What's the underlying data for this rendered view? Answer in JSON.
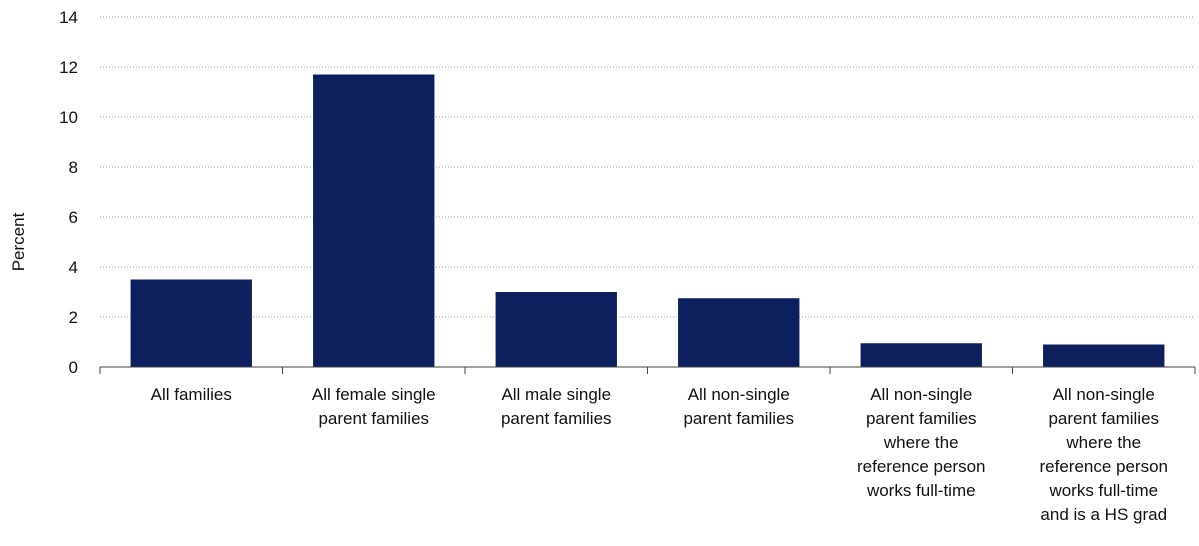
{
  "chart_data": {
    "type": "bar",
    "title": "",
    "xlabel": "",
    "ylabel": "Percent",
    "ylim": [
      0,
      14
    ],
    "yticks": [
      0,
      2,
      4,
      6,
      8,
      10,
      12,
      14
    ],
    "grid": true,
    "legend": "none",
    "bar_color": "#0d1f5c",
    "categories": [
      [
        "All families"
      ],
      [
        "All female single",
        "parent families"
      ],
      [
        "All male single",
        "parent families"
      ],
      [
        "All non-single",
        "parent families"
      ],
      [
        "All non-single",
        "parent families",
        "where the",
        "reference person",
        "works full-time"
      ],
      [
        "All non-single",
        "parent families",
        "where the",
        "reference person",
        "works full-time",
        "and is a HS grad"
      ]
    ],
    "values": [
      3.5,
      11.7,
      3.0,
      2.75,
      0.95,
      0.9
    ]
  }
}
